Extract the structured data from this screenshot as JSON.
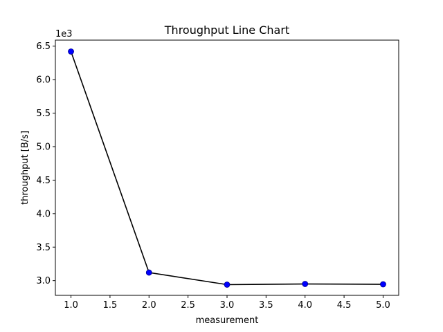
{
  "chart_data": {
    "type": "line",
    "title": "Throughput Line Chart",
    "xlabel": "measurement",
    "ylabel": "throughput [B/s]",
    "y_offset_label": "1e3",
    "x": [
      1.0,
      2.0,
      3.0,
      4.0,
      5.0
    ],
    "series": [
      {
        "values": [
          6.42,
          3.12,
          2.94,
          2.95,
          2.945
        ]
      }
    ],
    "xlim": [
      0.8,
      5.2
    ],
    "ylim": [
      2.78,
      6.59
    ],
    "xticks": [
      1.0,
      1.5,
      2.0,
      2.5,
      3.0,
      3.5,
      4.0,
      4.5,
      5.0
    ],
    "xtick_labels": [
      "1.0",
      "1.5",
      "2.0",
      "2.5",
      "3.0",
      "3.5",
      "4.0",
      "4.5",
      "5.0"
    ],
    "yticks": [
      3.0,
      3.5,
      4.0,
      4.5,
      5.0,
      5.5,
      6.0,
      6.5
    ],
    "ytick_labels": [
      "3.0",
      "3.5",
      "4.0",
      "4.5",
      "5.0",
      "5.5",
      "6.0",
      "6.5"
    ],
    "grid": false,
    "colors": {
      "line": "#000000",
      "marker": "#0000ff",
      "marker_edge": "#00008b"
    }
  }
}
